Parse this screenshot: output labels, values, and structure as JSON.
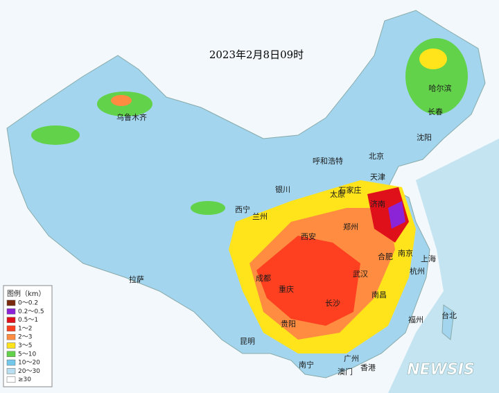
{
  "title": "2023年2月8日09时",
  "cities": [
    "乌鲁木齐",
    "哈尔滨",
    "长春",
    "沈阳",
    "北京",
    "呼和浩特",
    "天津",
    "石家庄",
    "太原",
    "银川",
    "济南",
    "西宁",
    "兰州",
    "郑州",
    "西安",
    "合肥",
    "南京",
    "上海",
    "拉萨",
    "成都",
    "武汉",
    "杭州",
    "重庆",
    "长沙",
    "南昌",
    "福州",
    "台北",
    "贵阳",
    "昆明",
    "广州",
    "南宁",
    "香港",
    "澳门"
  ],
  "legend": {
    "title": "图例（km）",
    "items": [
      {
        "label": "0～0.2",
        "color": "#7a2a0c"
      },
      {
        "label": "0.2～0.5",
        "color": "#8a24d6"
      },
      {
        "label": "0.5～1",
        "color": "#e0101a"
      },
      {
        "label": "1～2",
        "color": "#ff4020"
      },
      {
        "label": "2～3",
        "color": "#ff8c40"
      },
      {
        "label": "3～5",
        "color": "#ffe41c"
      },
      {
        "label": "5～10",
        "color": "#62d24a"
      },
      {
        "label": "10～20",
        "color": "#74c8ea"
      },
      {
        "label": "20～30",
        "color": "#b8def0"
      },
      {
        "label": "≥30",
        "color": "#ffffff"
      }
    ]
  },
  "watermark": "NEWSIS"
}
